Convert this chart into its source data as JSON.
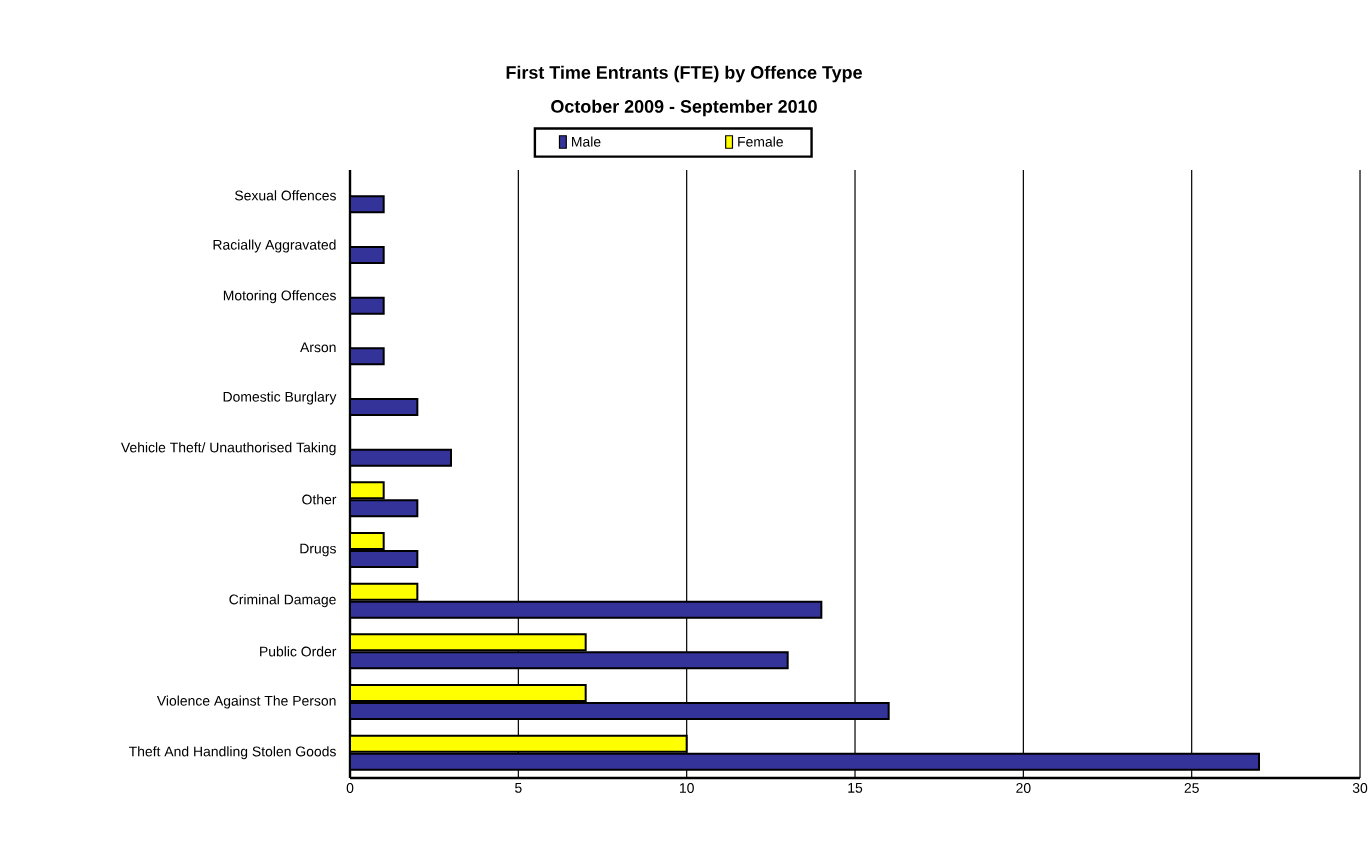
{
  "chart_data": {
    "type": "bar",
    "orientation": "horizontal",
    "title": "First Time Entrants (FTE) by Offence Type",
    "subtitle": "October 2009 - September 2010",
    "categories": [
      "Sexual Offences",
      "Racially Aggravated",
      "Motoring Offences",
      "Arson",
      "Domestic Burglary",
      "Vehicle Theft/ Unauthorised Taking",
      "Other",
      "Drugs",
      "Criminal Damage",
      "Public Order",
      "Violence Against The Person",
      "Theft And Handling Stolen Goods"
    ],
    "series": [
      {
        "name": "Male",
        "color": "#333399",
        "values": [
          1,
          1,
          1,
          1,
          2,
          3,
          2,
          2,
          14,
          13,
          16,
          27
        ]
      },
      {
        "name": "Female",
        "color": "#ffff00",
        "values": [
          null,
          null,
          null,
          null,
          null,
          null,
          1,
          1,
          2,
          7,
          7,
          10
        ]
      }
    ],
    "xlim": [
      0,
      30
    ],
    "xticks": [
      0,
      5,
      10,
      15,
      20,
      25,
      30
    ],
    "grid": "x",
    "legend": "top"
  }
}
